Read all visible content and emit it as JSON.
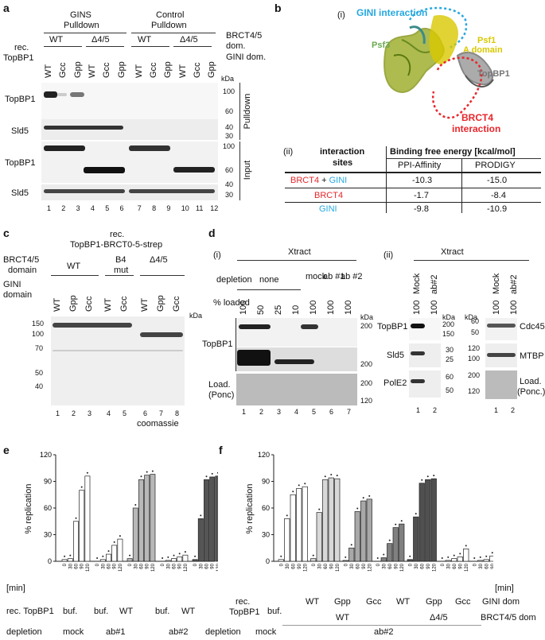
{
  "panels": {
    "a": {
      "letter": "a",
      "gins_title_1": "GINS",
      "gins_title_2": "Pulldown",
      "ctrl_title_1": "Control",
      "ctrl_title_2": "Pulldown",
      "brct_row": [
        "WT",
        "Δ4/5",
        "WT",
        "Δ4/5"
      ],
      "brct_label_1": "BRCT4/5",
      "brct_label_2": "dom.",
      "rec_label_1": "rec.",
      "rec_label_2": "TopBP1",
      "gini_label": "GINI dom.",
      "lanes_top": [
        "WT",
        "Gcc",
        "Gpp",
        "WT",
        "Gcc",
        "Gpp",
        "WT",
        "Gcc",
        "Gpp",
        "WT",
        "Gcc",
        "Gpp"
      ],
      "kda": "kDa",
      "rows": [
        "TopBP1",
        "Sld5",
        "TopBP1",
        "Sld5"
      ],
      "markers": [
        "100",
        "60",
        "40",
        "30",
        "100",
        "60",
        "40",
        "30"
      ],
      "side_pulldown": "Pulldown",
      "side_input": "Input",
      "lane_numbers": [
        "1",
        "2",
        "3",
        "4",
        "5",
        "6",
        "7",
        "8",
        "9",
        "10",
        "11",
        "12"
      ]
    },
    "b": {
      "letter": "b",
      "i_label": "(i)",
      "gini_interaction": "GINI interaction",
      "psf1": "Psf1",
      "psf1_a": "A domain",
      "psf3": "Psf3",
      "topbp1": "TopBP1",
      "brct4_interaction_1": "BRCT4",
      "brct4_interaction_2": "interaction",
      "ii_label": "(ii)",
      "table": {
        "col1_header_1": "interaction",
        "col1_header_2": "sites",
        "binding_header": "Binding free energy [kcal/mol]",
        "col2": "PPI-Affinity",
        "col3": "PRODIGY",
        "rows": [
          {
            "site_a": "BRCT4",
            "plus": " + ",
            "site_b": "GINI",
            "ppi": "-10.3",
            "prodigy": "-15.0"
          },
          {
            "site_a": "BRCT4",
            "plus": "",
            "site_b": "",
            "ppi": "-1.7",
            "prodigy": "-8.4"
          },
          {
            "site_a": "",
            "plus": "",
            "site_b": "GINI",
            "ppi": "-9.8",
            "prodigy": "-10.9"
          }
        ]
      },
      "colors": {
        "brct": "#e8262b",
        "gini": "#27a8e0",
        "psf1": "#d8c800",
        "psf3": "#6aa84f"
      }
    },
    "c": {
      "letter": "c",
      "title_1": "rec.",
      "title_2": "TopBP1-BRCT0-5-strep",
      "brct_label_1": "BRCT4/5",
      "brct_label_2": "domain",
      "gini_label_1": "GINI",
      "gini_label_2": "domain",
      "groups": [
        "WT",
        "B4",
        "mut",
        "Δ4/5"
      ],
      "lanes": [
        "WT",
        "Gpp",
        "Gcc",
        "WT",
        "Gcc",
        "WT",
        "Gpp",
        "Gcc"
      ],
      "kda": "kDa",
      "markers": [
        "150",
        "100",
        "70",
        "50",
        "40"
      ],
      "lane_numbers": [
        "1",
        "2",
        "3",
        "4",
        "5",
        "6",
        "7",
        "8"
      ],
      "stain": "coomassie"
    },
    "d": {
      "letter": "d",
      "i_label": "(i)",
      "ii_label": "(ii)",
      "xtract": "Xtract",
      "depletion": "depletion",
      "none": "none",
      "mock": "mock",
      "ab1": "ab #1",
      "ab2": "ab #2",
      "pct_loaded": "% loaded",
      "loaded_vals": [
        "100",
        "50",
        "25",
        "10",
        "100",
        "100",
        "100"
      ],
      "kda": "kDa",
      "topbp1": "TopBP1",
      "load_1": "Load.",
      "load_2": "(Ponc)",
      "markers_i": [
        "200",
        "200",
        "200",
        "120"
      ],
      "lane_numbers_i": [
        "1",
        "2",
        "3",
        "4",
        "5",
        "6",
        "7"
      ],
      "ii_xtract": "Xtract",
      "ii_mock": "Mock",
      "ii_ab2": "ab#2",
      "ii_vals": [
        "100",
        "100"
      ],
      "ii_rows_left": [
        "TopBP1",
        "Sld5",
        "PolE2"
      ],
      "ii_markers_left": [
        "200",
        "150",
        "30",
        "25",
        "60",
        "50"
      ],
      "ii_markers_right": [
        "60",
        "50",
        "120",
        "100",
        "200",
        "120"
      ],
      "ii_rows_right": [
        "Cdc45",
        "MTBP",
        "Load.",
        "(Ponc.)"
      ],
      "lane_numbers_ii": [
        "1",
        "2",
        "1",
        "2"
      ]
    },
    "e": {
      "letter": "e",
      "ylabel": "% replication",
      "min_label": "[min]",
      "rec_label": "rec. TopBP1",
      "depletion_label": "depletion",
      "rec_vals": [
        "buf.",
        "buf.",
        "WT",
        "buf.",
        "WT"
      ],
      "depletion_vals": [
        "mock",
        "ab#1",
        "ab#2"
      ],
      "time_ticks": [
        "0",
        "30",
        "60",
        "90",
        "120"
      ]
    },
    "f": {
      "letter": "f",
      "ylabel": "% replication",
      "min_label": "[min]",
      "rec_label_1": "rec.",
      "rec_label_2": "TopBP1",
      "gini_dom": "GINI dom",
      "brct_dom": "BRCT4/5 dom",
      "depletion_label": "depletion",
      "depletion_mock": "mock",
      "depletion_ab2": "ab#2",
      "buf": "buf.",
      "gini_vals": [
        "WT",
        "Gpp",
        "Gcc",
        "WT",
        "Gpp",
        "Gcc"
      ],
      "brct_vals": [
        "WT",
        "Δ4/5"
      ],
      "time_ticks": [
        "0",
        "30",
        "60",
        "90",
        "120"
      ]
    }
  },
  "chart_data": [
    {
      "type": "bar",
      "panel": "e",
      "ylabel": "% replication",
      "xlabel": "[min]",
      "ylim": [
        0,
        120
      ],
      "yticks": [
        0,
        30,
        60,
        90,
        120
      ],
      "x": [
        0,
        30,
        60,
        90,
        120
      ],
      "series": [
        {
          "values": [
            2,
            3,
            45,
            80,
            96
          ],
          "fill": "#ffffff"
        },
        {
          "values": [
            0,
            2,
            8,
            18,
            25
          ],
          "fill": "#ffffff"
        },
        {
          "values": [
            3,
            60,
            92,
            97,
            98
          ],
          "fill": "#b8b8b8"
        },
        {
          "values": [
            0,
            1,
            3,
            5,
            7
          ],
          "fill": "#ffffff"
        },
        {
          "values": [
            2,
            48,
            92,
            95,
            96
          ],
          "fill": "#555555"
        }
      ]
    },
    {
      "type": "bar",
      "panel": "f",
      "ylabel": "% replication",
      "xlabel": "[min]",
      "ylim": [
        0,
        120
      ],
      "yticks": [
        0,
        30,
        60,
        90,
        120
      ],
      "x": [
        0,
        30,
        60,
        90,
        120
      ],
      "series": [
        {
          "values": [
            2,
            48,
            75,
            82,
            84
          ],
          "fill": "#ffffff"
        },
        {
          "values": [
            3,
            55,
            92,
            94,
            93
          ],
          "fill": "#d8d8d8"
        },
        {
          "values": [
            1,
            15,
            56,
            68,
            70
          ],
          "fill": "#a8a8a8"
        },
        {
          "values": [
            0,
            4,
            20,
            38,
            42
          ],
          "fill": "#808080"
        },
        {
          "values": [
            2,
            50,
            88,
            92,
            93
          ],
          "fill": "#505050"
        },
        {
          "values": [
            0,
            1,
            3,
            5,
            14
          ],
          "fill": "#ffffff"
        },
        {
          "values": [
            0,
            1,
            2,
            6,
            9
          ],
          "fill": "#ffffff"
        }
      ]
    }
  ]
}
